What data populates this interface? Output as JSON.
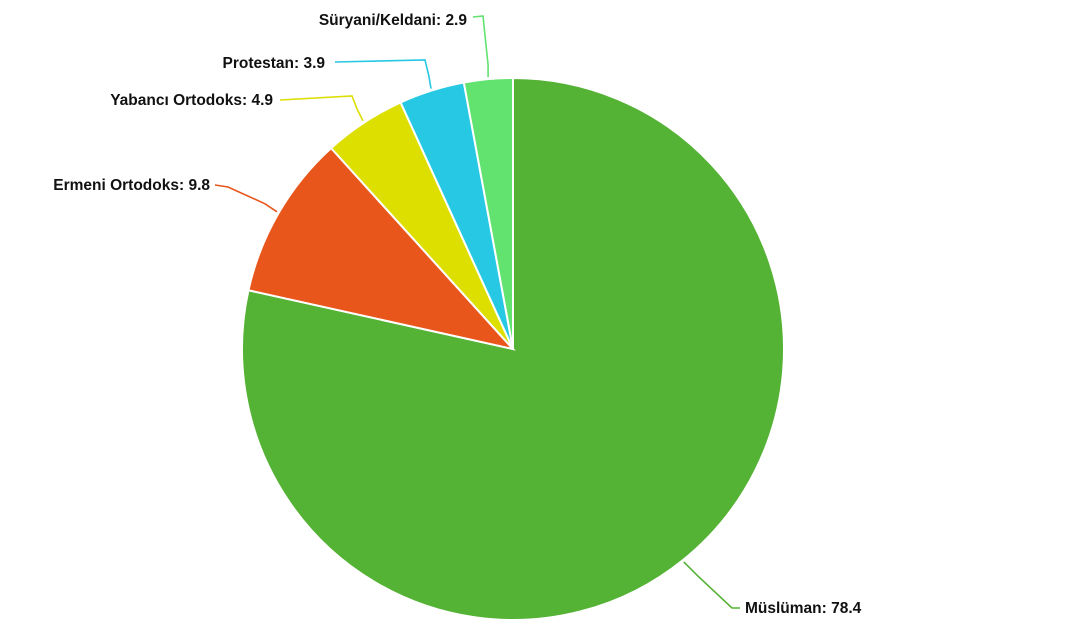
{
  "chart_data": {
    "type": "pie",
    "slices": [
      {
        "label": "Müslüman",
        "value": 78.4,
        "color": "#54B234",
        "text": "Müslüman: 78.4"
      },
      {
        "label": "Ermeni Ortodoks",
        "value": 9.8,
        "color": "#E9561C",
        "text": "Ermeni Ortodoks: 9.8"
      },
      {
        "label": "Yabancı Ortodoks",
        "value": 4.9,
        "color": "#DCDF00",
        "text": "Yabancı Ortodoks: 4.9"
      },
      {
        "label": "Protestan",
        "value": 3.9,
        "color": "#26C8E3",
        "text": "Protestan: 3.9"
      },
      {
        "label": "Süryani/Keldani",
        "value": 2.9,
        "color": "#62E26F",
        "text": "Süryani/Keldani: 2.9"
      }
    ],
    "start_angle": "12 o'clock",
    "direction": "clockwise",
    "legend": "none",
    "data_labels": "outside with leader lines"
  }
}
